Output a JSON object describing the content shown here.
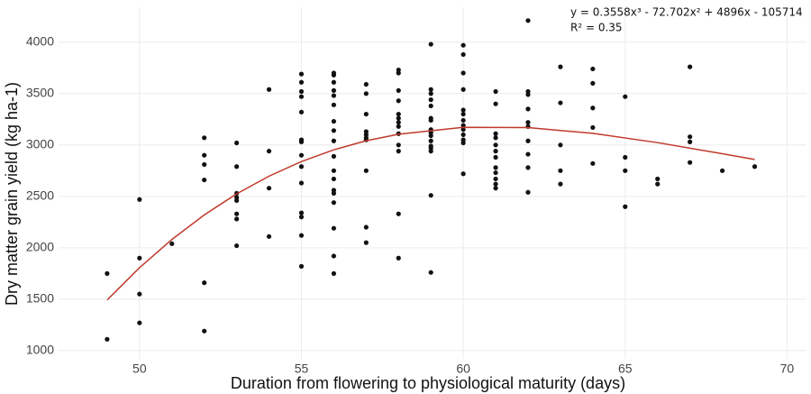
{
  "chart_data": {
    "type": "scatter",
    "xlabel": "Duration from flowering to physiological maturity (days)",
    "ylabel": "Dry matter grain yield (kg ha-1)",
    "annotations": [
      "y = 0.3558x³ - 72.702x² + 4896x - 105714",
      "R² = 0.35"
    ],
    "xlim": [
      47.5,
      70.6
    ],
    "xticks": [
      50,
      55,
      60,
      65,
      70
    ],
    "ylim": [
      920,
      4340
    ],
    "yticks": [
      1000,
      1500,
      2000,
      2500,
      3000,
      3500,
      4000
    ],
    "grid": true,
    "series": [
      {
        "type": "scatter",
        "color": "#111111",
        "x": [
          49,
          49,
          50,
          50,
          50,
          50,
          51,
          52,
          52,
          52,
          52,
          52,
          52,
          53,
          53,
          53,
          53,
          53,
          53,
          53,
          53,
          54,
          54,
          54,
          54,
          55,
          55,
          55,
          55,
          55,
          55,
          55,
          55,
          55,
          55,
          55,
          55,
          55,
          55,
          56,
          56,
          56,
          56,
          56,
          56,
          56,
          56,
          56,
          56,
          56,
          56,
          56,
          56,
          56,
          56,
          56,
          56,
          57,
          57,
          57,
          57,
          57,
          57,
          57,
          57,
          57,
          57,
          58,
          58,
          58,
          58,
          58,
          58,
          58,
          58,
          58,
          58,
          58,
          58,
          58,
          59,
          59,
          59,
          59,
          59,
          59,
          59,
          59,
          59,
          59,
          59,
          59,
          59,
          59,
          59,
          59,
          60,
          60,
          60,
          60,
          60,
          60,
          60,
          60,
          60,
          60,
          60,
          60,
          60,
          61,
          61,
          61,
          61,
          61,
          61,
          61,
          61,
          61,
          61,
          61,
          61,
          62,
          62,
          62,
          62,
          62,
          62,
          62,
          62,
          62,
          62,
          63,
          63,
          63,
          63,
          63,
          64,
          64,
          64,
          64,
          64,
          65,
          65,
          65,
          65,
          66,
          66,
          67,
          67,
          67,
          67,
          68,
          69
        ],
        "values": [
          1750,
          1110,
          2470,
          1900,
          1550,
          1270,
          2040,
          3070,
          2900,
          2810,
          2660,
          1660,
          1190,
          3020,
          2790,
          2530,
          2490,
          2460,
          2330,
          2280,
          2020,
          3540,
          2940,
          2580,
          2110,
          3690,
          3610,
          3520,
          3470,
          3320,
          3050,
          3030,
          2900,
          2790,
          2630,
          2340,
          2300,
          2120,
          1820,
          3700,
          3680,
          3610,
          3530,
          3480,
          3390,
          3230,
          3140,
          3040,
          2890,
          2750,
          2670,
          2560,
          2530,
          2440,
          2190,
          1920,
          1750,
          3590,
          3500,
          3300,
          3130,
          3100,
          3070,
          3050,
          2750,
          2200,
          2050,
          3730,
          3700,
          3530,
          3430,
          3300,
          3260,
          3220,
          3180,
          3110,
          3000,
          2940,
          2330,
          1900,
          3980,
          3540,
          3500,
          3440,
          3380,
          3260,
          3240,
          3150,
          3120,
          3090,
          3040,
          2990,
          2970,
          2940,
          2510,
          1760,
          3970,
          3880,
          3700,
          3540,
          3340,
          3300,
          3240,
          3190,
          3150,
          3100,
          3050,
          3020,
          2720,
          3520,
          3400,
          3110,
          3070,
          3000,
          2940,
          2880,
          2780,
          2730,
          2670,
          2620,
          2580,
          4210,
          3520,
          3490,
          3350,
          3220,
          3180,
          3040,
          2910,
          2780,
          2540,
          3760,
          3410,
          3000,
          2750,
          2620,
          3740,
          3600,
          3360,
          3170,
          2820,
          3470,
          2880,
          2750,
          2400,
          2670,
          2620,
          3760,
          3080,
          3030,
          2830,
          2750,
          2790
        ]
      },
      {
        "type": "line",
        "color": "#c0392b",
        "x": [
          49,
          50,
          51,
          52,
          53,
          54,
          55,
          56,
          57,
          58,
          60,
          62,
          64,
          66,
          68,
          69
        ],
        "values": [
          1492,
          1806,
          2081,
          2320,
          2525,
          2697,
          2839,
          2953,
          3041,
          3105,
          3172,
          3169,
          3113,
          3023,
          2915,
          2859
        ]
      }
    ]
  }
}
